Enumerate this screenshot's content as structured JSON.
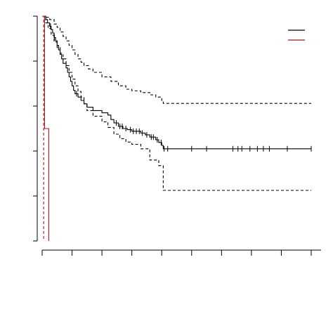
{
  "chart_data": {
    "type": "line",
    "title": "",
    "xlabel": "",
    "ylabel": "",
    "xlim": [
      0,
      9
    ],
    "ylim": [
      0,
      1
    ],
    "x_ticks": [
      0,
      1,
      2,
      3,
      4,
      5,
      6,
      7,
      8,
      9
    ],
    "y_ticks": [
      0,
      0.2,
      0.4,
      0.6,
      0.8,
      1.0
    ],
    "tick_labels_visible": false,
    "grid": false,
    "legend": {
      "position": "top-right"
    },
    "colors": {
      "group1": "#000000",
      "group2": "#a01818",
      "axis": "#000000"
    },
    "series": [
      {
        "key": "group1-estimate",
        "color": "#000000",
        "dashed": false,
        "steps": [
          [
            0.0,
            1.0
          ],
          [
            0.12,
            0.985
          ],
          [
            0.18,
            0.97
          ],
          [
            0.25,
            0.955
          ],
          [
            0.3,
            0.94
          ],
          [
            0.35,
            0.925
          ],
          [
            0.4,
            0.905
          ],
          [
            0.45,
            0.89
          ],
          [
            0.5,
            0.87
          ],
          [
            0.55,
            0.85
          ],
          [
            0.6,
            0.83
          ],
          [
            0.65,
            0.81
          ],
          [
            0.7,
            0.79
          ],
          [
            0.8,
            0.77
          ],
          [
            0.85,
            0.75
          ],
          [
            0.9,
            0.73
          ],
          [
            0.95,
            0.71
          ],
          [
            1.0,
            0.69
          ],
          [
            1.05,
            0.67
          ],
          [
            1.1,
            0.655
          ],
          [
            1.2,
            0.64
          ],
          [
            1.3,
            0.625
          ],
          [
            1.4,
            0.61
          ],
          [
            1.5,
            0.595
          ],
          [
            1.7,
            0.58
          ],
          [
            2.0,
            0.57
          ],
          [
            2.2,
            0.56
          ],
          [
            2.3,
            0.54
          ],
          [
            2.4,
            0.525
          ],
          [
            2.55,
            0.51
          ],
          [
            2.7,
            0.5
          ],
          [
            2.85,
            0.495
          ],
          [
            3.0,
            0.488
          ],
          [
            3.3,
            0.48
          ],
          [
            3.45,
            0.472
          ],
          [
            3.6,
            0.462
          ],
          [
            3.8,
            0.45
          ],
          [
            3.9,
            0.438
          ],
          [
            4.0,
            0.425
          ],
          [
            4.05,
            0.41
          ],
          [
            9.0,
            0.41
          ]
        ],
        "censor_times": [
          0.28,
          0.41,
          1.15,
          2.48,
          2.6,
          2.68,
          2.8,
          2.95,
          3.05,
          3.15,
          3.25,
          3.35,
          3.5,
          3.65,
          3.72,
          3.85,
          3.98,
          4.08,
          4.2,
          5.0,
          5.5,
          6.38,
          6.55,
          6.68,
          6.95,
          7.2,
          7.4,
          7.6,
          8.2,
          9.0
        ]
      },
      {
        "key": "group1-upper-ci",
        "color": "#000000",
        "dashed": true,
        "steps": [
          [
            0.0,
            1.0
          ],
          [
            0.12,
            0.995
          ],
          [
            0.25,
            0.985
          ],
          [
            0.4,
            0.965
          ],
          [
            0.5,
            0.95
          ],
          [
            0.6,
            0.93
          ],
          [
            0.7,
            0.91
          ],
          [
            0.8,
            0.89
          ],
          [
            0.9,
            0.87
          ],
          [
            1.0,
            0.85
          ],
          [
            1.1,
            0.83
          ],
          [
            1.2,
            0.81
          ],
          [
            1.3,
            0.795
          ],
          [
            1.4,
            0.78
          ],
          [
            1.55,
            0.765
          ],
          [
            1.7,
            0.75
          ],
          [
            2.0,
            0.73
          ],
          [
            2.3,
            0.71
          ],
          [
            2.55,
            0.69
          ],
          [
            2.8,
            0.675
          ],
          [
            3.0,
            0.668
          ],
          [
            3.3,
            0.66
          ],
          [
            3.6,
            0.65
          ],
          [
            3.8,
            0.64
          ],
          [
            4.0,
            0.625
          ],
          [
            4.05,
            0.612
          ],
          [
            9.0,
            0.612
          ]
        ]
      },
      {
        "key": "group1-lower-ci",
        "color": "#000000",
        "dashed": true,
        "steps": [
          [
            0.0,
            1.0
          ],
          [
            0.12,
            0.97
          ],
          [
            0.2,
            0.945
          ],
          [
            0.3,
            0.915
          ],
          [
            0.4,
            0.885
          ],
          [
            0.5,
            0.86
          ],
          [
            0.6,
            0.835
          ],
          [
            0.7,
            0.81
          ],
          [
            0.8,
            0.78
          ],
          [
            0.9,
            0.75
          ],
          [
            1.0,
            0.72
          ],
          [
            1.1,
            0.69
          ],
          [
            1.2,
            0.665
          ],
          [
            1.3,
            0.64
          ],
          [
            1.4,
            0.61
          ],
          [
            1.5,
            0.58
          ],
          [
            1.7,
            0.555
          ],
          [
            2.0,
            0.53
          ],
          [
            2.2,
            0.505
          ],
          [
            2.4,
            0.475
          ],
          [
            2.6,
            0.455
          ],
          [
            2.8,
            0.44
          ],
          [
            3.0,
            0.43
          ],
          [
            3.3,
            0.41
          ],
          [
            3.6,
            0.36
          ],
          [
            3.9,
            0.335
          ],
          [
            4.05,
            0.225
          ],
          [
            9.0,
            0.225
          ]
        ]
      },
      {
        "key": "group2-estimate",
        "color": "#a01818",
        "dashed": false,
        "steps": [
          [
            0.0,
            1.0
          ],
          [
            0.08,
            0.5
          ],
          [
            0.22,
            0.0
          ]
        ],
        "censor_times": []
      },
      {
        "key": "group2-ci",
        "color": "#a01818",
        "dashed": true,
        "steps": [
          [
            0.0,
            1.0
          ],
          [
            0.05,
            0.0
          ]
        ]
      }
    ]
  }
}
